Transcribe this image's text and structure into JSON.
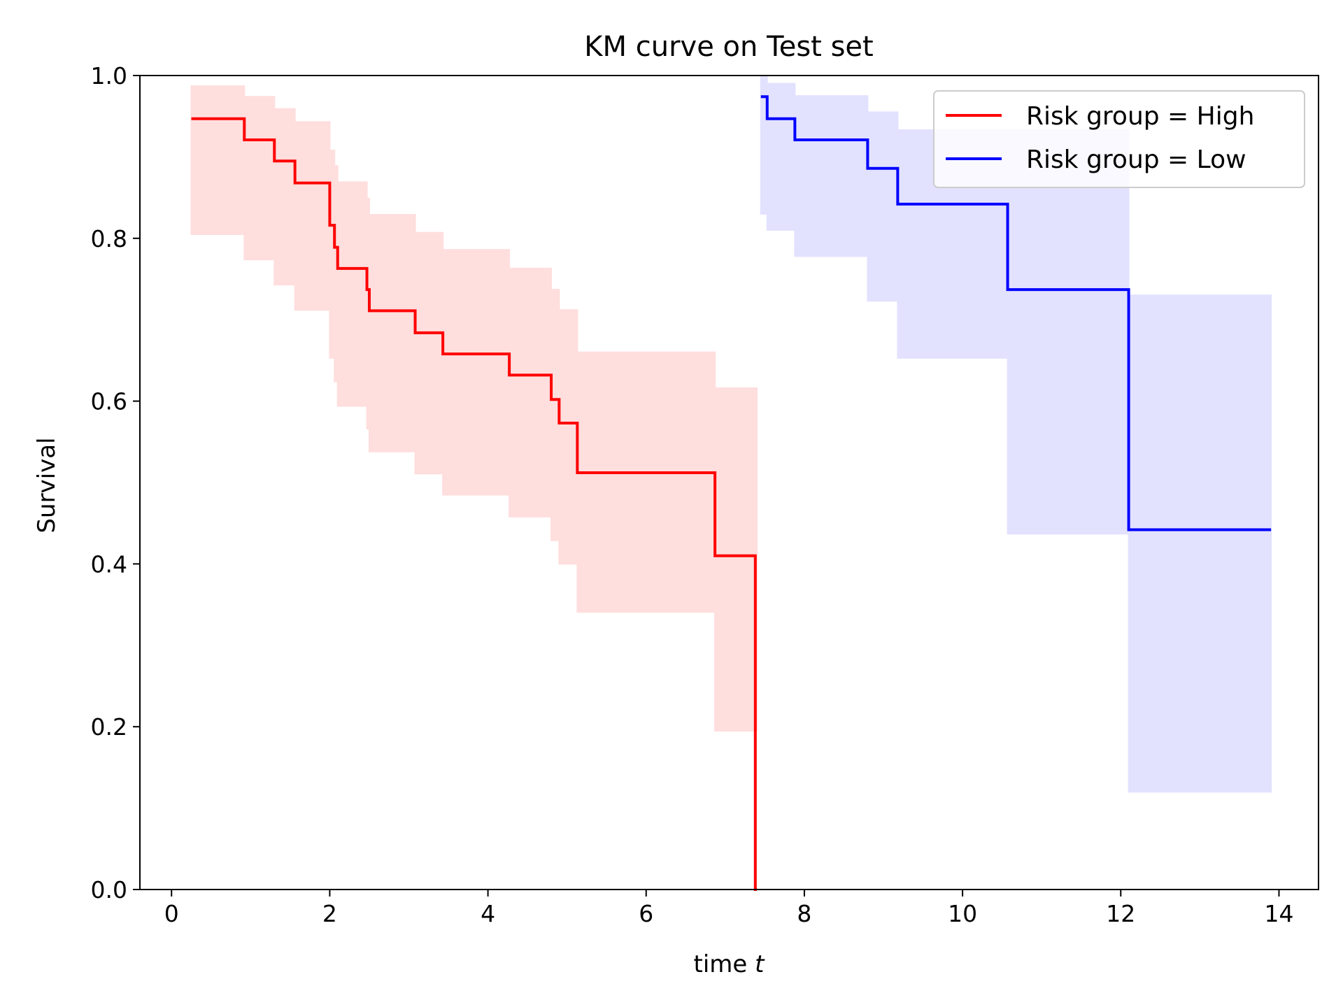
{
  "chart_data": {
    "type": "line",
    "title": "KM curve on Test set",
    "xlabel": "time",
    "xlabel_italic": "t",
    "ylabel": "Survival",
    "xlim": [
      -0.4,
      14.5
    ],
    "ylim": [
      0,
      1
    ],
    "xticks": [
      0,
      2,
      4,
      6,
      8,
      10,
      12,
      14
    ],
    "yticks": [
      0.0,
      0.2,
      0.4,
      0.6,
      0.8,
      1.0
    ],
    "xtick_labels": [
      "0",
      "2",
      "4",
      "6",
      "8",
      "10",
      "12",
      "14"
    ],
    "ytick_labels": [
      "0.0",
      "0.2",
      "0.4",
      "0.6",
      "0.8",
      "1.0"
    ],
    "grid": false,
    "legend_position": "top-right",
    "series": [
      {
        "name": "Risk group = High",
        "color": "#ff0000",
        "band_color": "#ffdede",
        "x": [
          0.25,
          0.92,
          1.3,
          1.56,
          2.0,
          2.06,
          2.1,
          2.47,
          2.5,
          3.08,
          3.43,
          4.27,
          4.8,
          4.9,
          5.13,
          6.87,
          7.38
        ],
        "survival": [
          0.947,
          0.921,
          0.895,
          0.868,
          0.816,
          0.789,
          0.763,
          0.737,
          0.711,
          0.684,
          0.658,
          0.632,
          0.602,
          0.573,
          0.512,
          0.41,
          0.0
        ],
        "ci_lower": [
          0.805,
          0.774,
          0.743,
          0.712,
          0.653,
          0.624,
          0.594,
          0.566,
          0.538,
          0.511,
          0.485,
          0.458,
          0.429,
          0.4,
          0.341,
          0.195,
          0.195
        ],
        "ci_upper": [
          0.987,
          0.974,
          0.959,
          0.943,
          0.908,
          0.889,
          0.869,
          0.849,
          0.829,
          0.807,
          0.786,
          0.763,
          0.737,
          0.712,
          0.66,
          0.616,
          0.616
        ],
        "end": 7.4
      },
      {
        "name": "Risk group = Low",
        "color": "#0000ff",
        "band_color": "#e2e2ff",
        "x": [
          7.45,
          7.53,
          7.88,
          8.8,
          9.18,
          10.57,
          12.1
        ],
        "survival": [
          0.974,
          0.947,
          0.921,
          0.886,
          0.842,
          0.737,
          0.442
        ],
        "ci_lower": [
          0.83,
          0.81,
          0.778,
          0.723,
          0.653,
          0.437,
          0.12
        ],
        "ci_upper": [
          1.0,
          0.99,
          0.975,
          0.955,
          0.933,
          0.933,
          0.73
        ],
        "end": 13.9
      }
    ]
  }
}
